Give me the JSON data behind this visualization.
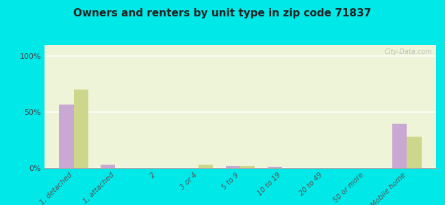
{
  "title": "Owners and renters by unit type in zip code 71837",
  "categories": [
    "1, detached",
    "1, attached",
    "2",
    "3 or 4",
    "5 to 9",
    "10 to 19",
    "20 to 49",
    "50 or more",
    "Mobile home"
  ],
  "owner_values": [
    57,
    3,
    0,
    0,
    2,
    1,
    0,
    0,
    40
  ],
  "renter_values": [
    70,
    0,
    0,
    3,
    2,
    0,
    0,
    0,
    28
  ],
  "owner_color": "#c9a8d4",
  "renter_color": "#cdd68a",
  "background_color": "#00e8e8",
  "plot_bg": "#eef4d8",
  "title_fontsize": 11,
  "ylabel_ticks": [
    "0%",
    "50%",
    "100%"
  ],
  "yticks": [
    0,
    50,
    100
  ],
  "ylim": [
    0,
    110
  ],
  "bar_width": 0.35,
  "watermark": "City-Data.com"
}
